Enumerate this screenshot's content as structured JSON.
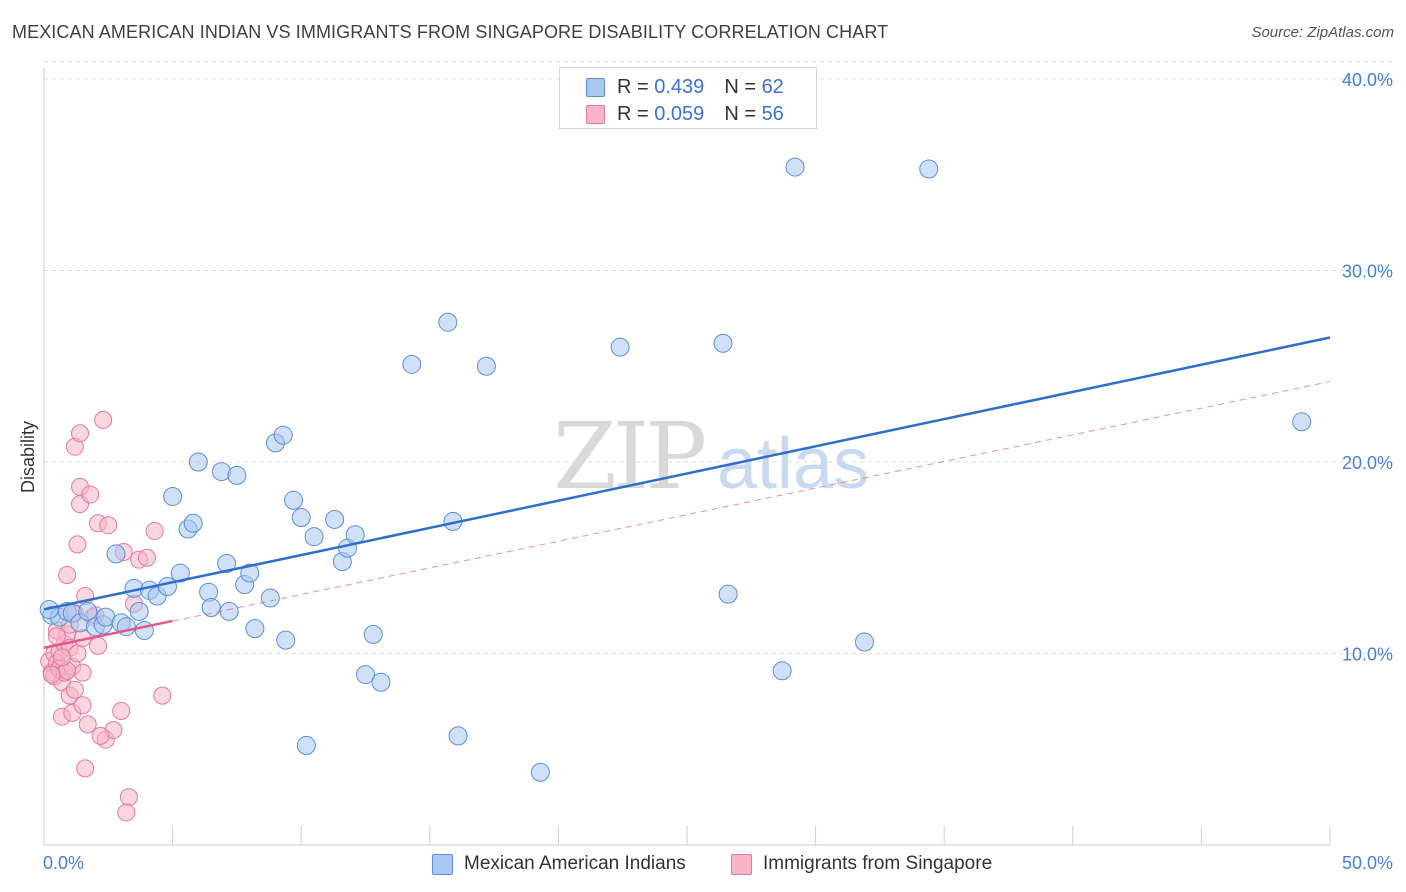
{
  "title": "MEXICAN AMERICAN INDIAN VS IMMIGRANTS FROM SINGAPORE DISABILITY CORRELATION CHART",
  "source": "Source: ZipAtlas.com",
  "watermark": {
    "zip": "ZIP",
    "atlas": "atlas"
  },
  "legend": {
    "rows": [
      {
        "r_label": "R =",
        "r_value": "0.439",
        "n_label": "N =",
        "n_value": "62"
      },
      {
        "r_label": "R =",
        "r_value": "0.059",
        "n_label": "N =",
        "n_value": "56"
      }
    ]
  },
  "colors": {
    "blue_fill": "#a9c8f0",
    "blue_stroke": "#5b8fd6",
    "blue_line": "#2f6fcb",
    "pink_fill": "#f6b5c8",
    "pink_stroke": "#e27a9d",
    "pink_line": "#e05a89",
    "grid": "#dcdcdc",
    "axis_text": "#4a7fd0"
  },
  "chart_data": {
    "type": "scatter",
    "title": "MEXICAN AMERICAN INDIAN VS IMMIGRANTS FROM SINGAPORE DISABILITY CORRELATION CHART",
    "xlabel": "",
    "ylabel": "Disability",
    "xlim": [
      0,
      50
    ],
    "ylim": [
      0,
      40.9
    ],
    "x_tick_labels": [
      "0.0%",
      "50.0%"
    ],
    "y_ticks": [
      10,
      20,
      30,
      40
    ],
    "y_tick_labels": [
      "10.0%",
      "20.0%",
      "30.0%",
      "40.0%"
    ],
    "grid": true,
    "series": [
      {
        "name": "Mexican American Indians",
        "r": 0.439,
        "n": 62,
        "trend": {
          "x": [
            0,
            50
          ],
          "y": [
            12.3,
            26.5
          ],
          "style": "solid"
        },
        "points": [
          [
            0.3,
            12.0
          ],
          [
            0.6,
            11.9
          ],
          [
            0.9,
            12.2
          ],
          [
            1.1,
            12.1
          ],
          [
            1.4,
            11.6
          ],
          [
            1.7,
            12.2
          ],
          [
            2.0,
            11.4
          ],
          [
            2.3,
            11.5
          ],
          [
            2.4,
            11.9
          ],
          [
            2.8,
            15.2
          ],
          [
            3.0,
            11.6
          ],
          [
            3.2,
            11.4
          ],
          [
            3.5,
            13.4
          ],
          [
            3.7,
            12.2
          ],
          [
            3.9,
            11.2
          ],
          [
            4.1,
            13.3
          ],
          [
            4.4,
            13.0
          ],
          [
            4.8,
            13.5
          ],
          [
            5.0,
            18.2
          ],
          [
            5.3,
            14.2
          ],
          [
            5.6,
            16.5
          ],
          [
            5.8,
            16.8
          ],
          [
            6.0,
            20.0
          ],
          [
            6.4,
            13.2
          ],
          [
            6.5,
            12.4
          ],
          [
            6.9,
            19.5
          ],
          [
            7.1,
            14.7
          ],
          [
            7.2,
            12.2
          ],
          [
            7.5,
            19.3
          ],
          [
            7.8,
            13.6
          ],
          [
            8.0,
            14.2
          ],
          [
            8.2,
            11.3
          ],
          [
            8.8,
            12.9
          ],
          [
            9.0,
            21.0
          ],
          [
            9.3,
            21.4
          ],
          [
            9.4,
            10.7
          ],
          [
            9.7,
            18.0
          ],
          [
            10.0,
            17.1
          ],
          [
            10.2,
            5.2
          ],
          [
            10.5,
            16.1
          ],
          [
            11.3,
            17.0
          ],
          [
            11.6,
            14.8
          ],
          [
            11.8,
            15.5
          ],
          [
            12.1,
            16.2
          ],
          [
            12.5,
            8.9
          ],
          [
            12.8,
            11.0
          ],
          [
            13.1,
            8.5
          ],
          [
            14.3,
            25.1
          ],
          [
            15.7,
            27.3
          ],
          [
            15.9,
            16.9
          ],
          [
            16.1,
            5.7
          ],
          [
            17.2,
            25.0
          ],
          [
            19.3,
            3.8
          ],
          [
            22.4,
            26.0
          ],
          [
            26.4,
            26.2
          ],
          [
            26.6,
            13.1
          ],
          [
            28.7,
            9.1
          ],
          [
            29.2,
            35.4
          ],
          [
            31.9,
            10.6
          ],
          [
            34.4,
            35.3
          ],
          [
            48.9,
            22.1
          ],
          [
            0.2,
            12.3
          ]
        ]
      },
      {
        "name": "Immigrants from Singapore",
        "r": 0.059,
        "n": 56,
        "trend_solid": {
          "x": [
            0,
            5
          ],
          "y": [
            10.3,
            11.7
          ]
        },
        "trend_dashed": {
          "x": [
            0,
            50
          ],
          "y": [
            10.3,
            24.2
          ]
        },
        "points": [
          [
            0.2,
            9.6
          ],
          [
            0.3,
            9.0
          ],
          [
            0.4,
            10.0
          ],
          [
            0.4,
            8.8
          ],
          [
            0.5,
            11.2
          ],
          [
            0.5,
            9.5
          ],
          [
            0.6,
            10.1
          ],
          [
            0.6,
            9.2
          ],
          [
            0.7,
            8.5
          ],
          [
            0.7,
            6.7
          ],
          [
            0.8,
            10.5
          ],
          [
            0.8,
            9.0
          ],
          [
            0.9,
            14.1
          ],
          [
            0.9,
            11.0
          ],
          [
            1.0,
            10.3
          ],
          [
            1.0,
            7.8
          ],
          [
            1.1,
            9.3
          ],
          [
            1.1,
            6.9
          ],
          [
            1.2,
            20.8
          ],
          [
            1.2,
            8.1
          ],
          [
            1.3,
            15.7
          ],
          [
            1.3,
            10.0
          ],
          [
            1.4,
            21.5
          ],
          [
            1.4,
            17.8
          ],
          [
            1.4,
            18.7
          ],
          [
            1.5,
            9.0
          ],
          [
            1.5,
            7.3
          ],
          [
            1.6,
            13.0
          ],
          [
            1.7,
            6.3
          ],
          [
            1.8,
            18.3
          ],
          [
            1.9,
            11.9
          ],
          [
            2.0,
            12.0
          ],
          [
            2.1,
            16.8
          ],
          [
            2.1,
            10.4
          ],
          [
            2.3,
            22.2
          ],
          [
            2.4,
            5.5
          ],
          [
            2.5,
            16.7
          ],
          [
            2.7,
            6.0
          ],
          [
            3.0,
            7.0
          ],
          [
            3.1,
            15.3
          ],
          [
            3.3,
            2.5
          ],
          [
            3.5,
            12.6
          ],
          [
            3.7,
            14.9
          ],
          [
            4.0,
            15.0
          ],
          [
            4.3,
            16.4
          ],
          [
            4.6,
            7.8
          ],
          [
            1.6,
            4.0
          ],
          [
            2.2,
            5.7
          ],
          [
            0.5,
            10.9
          ],
          [
            0.9,
            9.1
          ],
          [
            1.0,
            11.5
          ],
          [
            1.2,
            12.1
          ],
          [
            1.5,
            10.8
          ],
          [
            3.2,
            1.7
          ],
          [
            0.3,
            8.9
          ],
          [
            0.7,
            9.8
          ]
        ]
      }
    ]
  }
}
